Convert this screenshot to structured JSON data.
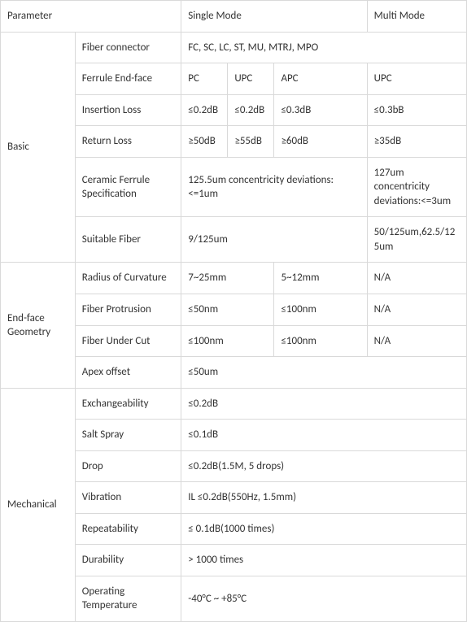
{
  "header": {
    "parameter": "Parameter",
    "single_mode": "Single Mode",
    "multi_mode": "Multi Mode"
  },
  "basic": {
    "group": "Basic",
    "fiber_connector_label": "Fiber connector",
    "fiber_connector_value": "FC, SC, LC, ST, MU, MTRJ, MPO",
    "ferrule_endface_label": "Ferrule End-face",
    "ferrule_endface": {
      "pc": "PC",
      "upc": "UPC",
      "apc": "APC",
      "upc2": "UPC"
    },
    "insertion_loss_label": "Insertion Loss",
    "insertion_loss": {
      "pc": "≤0.2dB",
      "upc": "≤0.2dB",
      "apc": "≤0.3dB",
      "mm": "≤0.3bB"
    },
    "return_loss_label": "Return Loss",
    "return_loss": {
      "pc": "≥50dB",
      "upc": "≥55dB",
      "apc": "≥60dB",
      "mm": "≥35dB"
    },
    "ceramic_label": "Ceramic Ferrule Specification",
    "ceramic_sm": "125.5um concentricity deviations:<=1um",
    "ceramic_mm": "127um concentricity deviations:<=3um",
    "suitable_fiber_label": "Suitable Fiber",
    "suitable_fiber_sm": "9/125um",
    "suitable_fiber_mm": "50/125um,62.5/125um"
  },
  "endface": {
    "group": "End-face Geometry",
    "roc_label": "Radius of Curvature",
    "roc": {
      "a": "7~25mm",
      "b": "5~12mm",
      "c": "N/A"
    },
    "fp_label": "Fiber Protrusion",
    "fp": {
      "a": "≤50nm",
      "b": "≤100nm",
      "c": "N/A"
    },
    "fuc_label": "Fiber Under Cut",
    "fuc": {
      "a": "≤100nm",
      "b": "≤100nm",
      "c": "N/A"
    },
    "apex_label": "Apex offset",
    "apex_value": "≤50um"
  },
  "mech": {
    "group": "Mechanical",
    "exchangeability_label": "Exchangeability",
    "exchangeability_value": "≤0.2dB",
    "salt_spray_label": "Salt Spray",
    "salt_spray_value": "≤0.1dB",
    "drop_label": "Drop",
    "drop_value": "≤0.2dB(1.5M, 5 drops)",
    "vibration_label": "Vibration",
    "vibration_value": "IL ≤0.2dB(550Hz, 1.5mm)",
    "repeatability_label": "Repeatability",
    "repeatability_value": "≤ 0.1dB(1000 times)",
    "durability_label": "Durability",
    "durability_value": "> 1000 times",
    "op_temp_label": "Operating Temperature",
    "op_temp_value": "-40°C ~ +85°C"
  }
}
